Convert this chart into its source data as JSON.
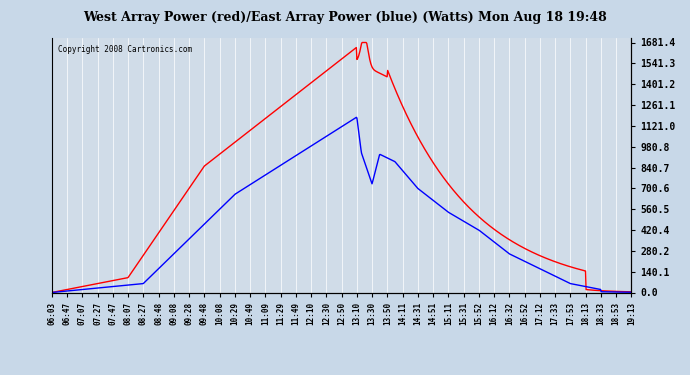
{
  "title": "West Array Power (red)/East Array Power (blue) (Watts) Mon Aug 18 19:48",
  "copyright": "Copyright 2008 Cartronics.com",
  "bg_color": "#c8d8e8",
  "plot_bg": "#d0dce8",
  "ymin": 0.0,
  "ymax": 1681.4,
  "yticks": [
    0.0,
    140.1,
    280.2,
    420.4,
    560.5,
    700.6,
    840.7,
    980.8,
    1121.0,
    1261.1,
    1401.2,
    1541.3,
    1681.4
  ],
  "xtick_labels": [
    "06:03",
    "06:47",
    "07:07",
    "07:27",
    "07:47",
    "08:07",
    "08:27",
    "08:48",
    "09:08",
    "09:28",
    "09:48",
    "10:08",
    "10:29",
    "10:49",
    "11:09",
    "11:29",
    "11:49",
    "12:10",
    "12:30",
    "12:50",
    "13:10",
    "13:30",
    "13:50",
    "14:11",
    "14:31",
    "14:51",
    "15:11",
    "15:31",
    "15:52",
    "16:12",
    "16:32",
    "16:52",
    "17:12",
    "17:33",
    "17:53",
    "18:13",
    "18:33",
    "18:53",
    "19:13"
  ]
}
